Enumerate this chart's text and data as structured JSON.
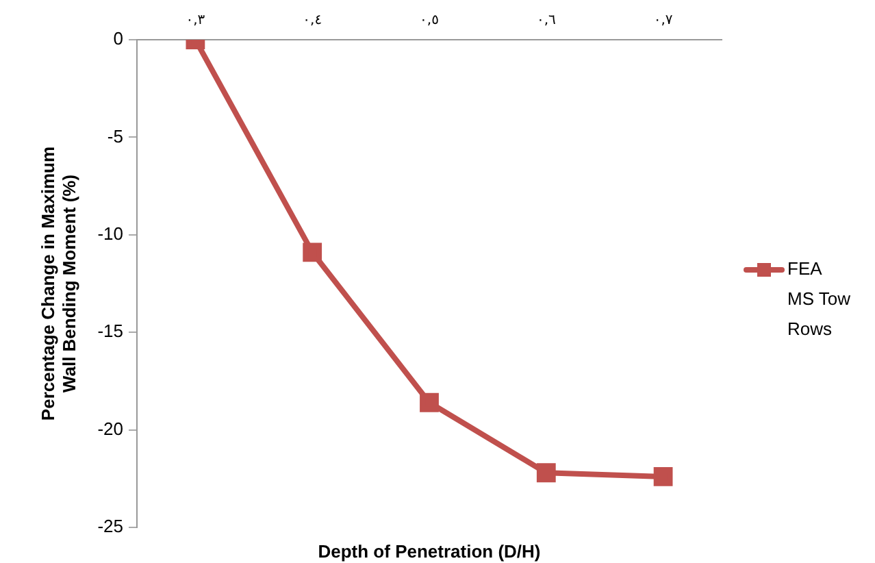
{
  "chart_data": {
    "type": "line",
    "xlabel": "Depth of Penetration (D/H)",
    "ylabel": "Percentage Change in Maximum Wall Bending Moment (%)",
    "categories": [
      "٠,٣",
      "٠,٤",
      "٠,٥",
      "٠,٦",
      "٠,٧"
    ],
    "series": [
      {
        "name": "FEA MS Tow Rows",
        "color": "#c0504d",
        "values": [
          0,
          -10.9,
          -18.6,
          -22.2,
          -22.4
        ]
      }
    ],
    "ylim": [
      -25,
      0
    ],
    "yticks": [
      -25,
      -20,
      -15,
      -10,
      -5,
      0
    ],
    "grid": false,
    "legend": "right",
    "marker": "square",
    "line_style": "solid"
  }
}
